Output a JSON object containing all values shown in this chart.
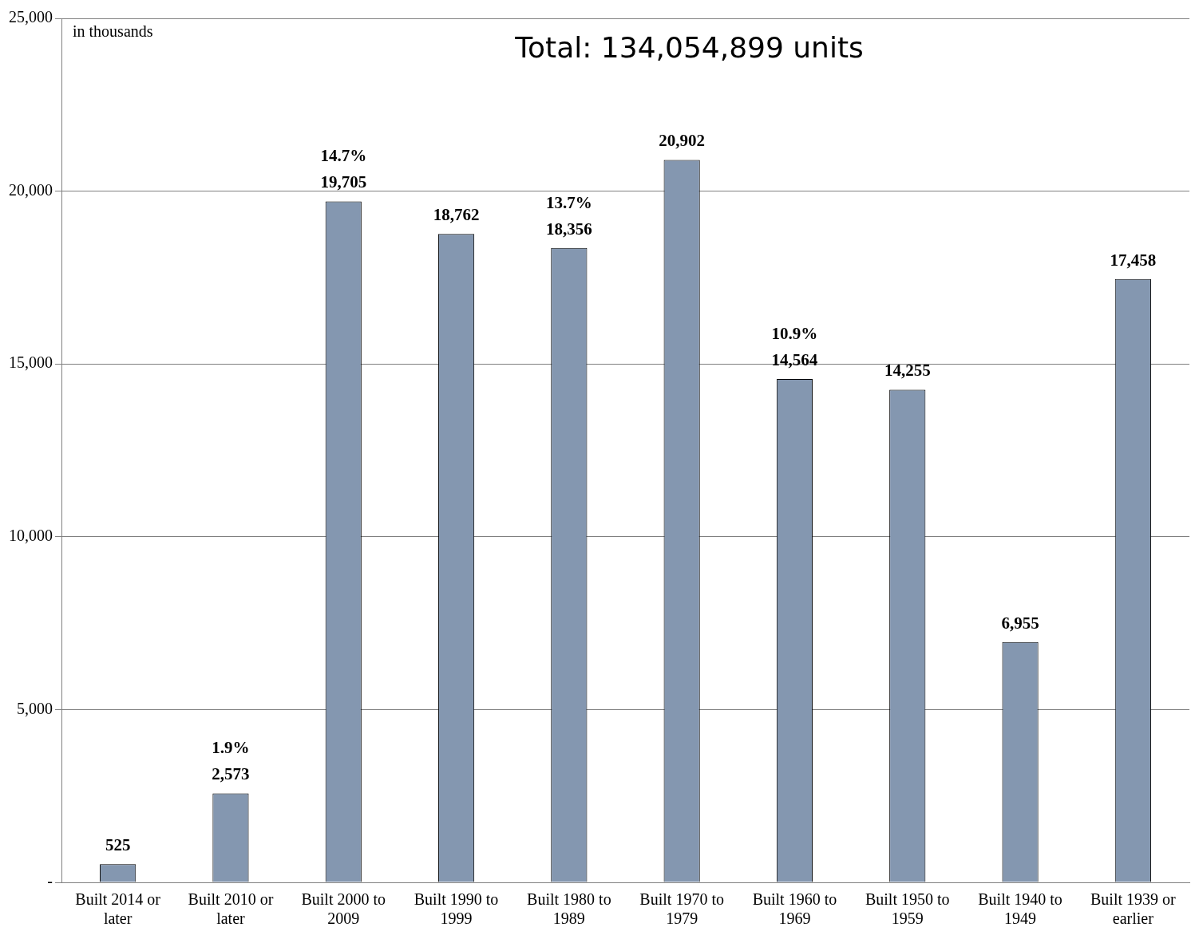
{
  "chart_data": {
    "type": "bar",
    "title": "Total: 134,054,899 units",
    "categories": [
      "Built 2014 or later",
      "Built 2010 or later",
      "Built 2000 to 2009",
      "Built 1990 to 1999",
      "Built 1980 to 1989",
      "Built 1970 to 1979",
      "Built 1960 to 1969",
      "Built 1950 to 1959",
      "Built 1940 to 1949",
      "Built 1939 or earlier"
    ],
    "values": [
      525,
      2573,
      19705,
      18762,
      18356,
      20902,
      14564,
      14255,
      6955,
      17458
    ],
    "color": "#8497b0",
    "ylim": [
      0,
      25000
    ],
    "value_labels": [
      "525",
      "2,573",
      "19,705",
      "18,762",
      "18,356",
      "20,902",
      "14,564",
      "14,255",
      "6,955",
      "17,458"
    ],
    "yticks": [
      {
        "value": 0,
        "label": "-"
      },
      {
        "value": 5000,
        "label": "5,000"
      },
      {
        "value": 10000,
        "label": "10,000"
      },
      {
        "value": 15000,
        "label": "15,000"
      },
      {
        "value": 20000,
        "label": "20,000"
      },
      {
        "value": 25000,
        "label": "25,000"
      }
    ],
    "grid": "y",
    "legend": false,
    "annotations": [
      "in thousands",
      {
        "text": "14.7%",
        "x": "Built 2000 to 2009",
        "y": 19705
      },
      {
        "text": "13.7%",
        "x": "Built 1980 to 1989",
        "y": 18356
      },
      {
        "text": "10.9%",
        "x": "Built 1960 to 1969",
        "y": 14564
      },
      {
        "text": "1.9%",
        "x": "Built 2010 or later",
        "y": 2573
      }
    ]
  }
}
